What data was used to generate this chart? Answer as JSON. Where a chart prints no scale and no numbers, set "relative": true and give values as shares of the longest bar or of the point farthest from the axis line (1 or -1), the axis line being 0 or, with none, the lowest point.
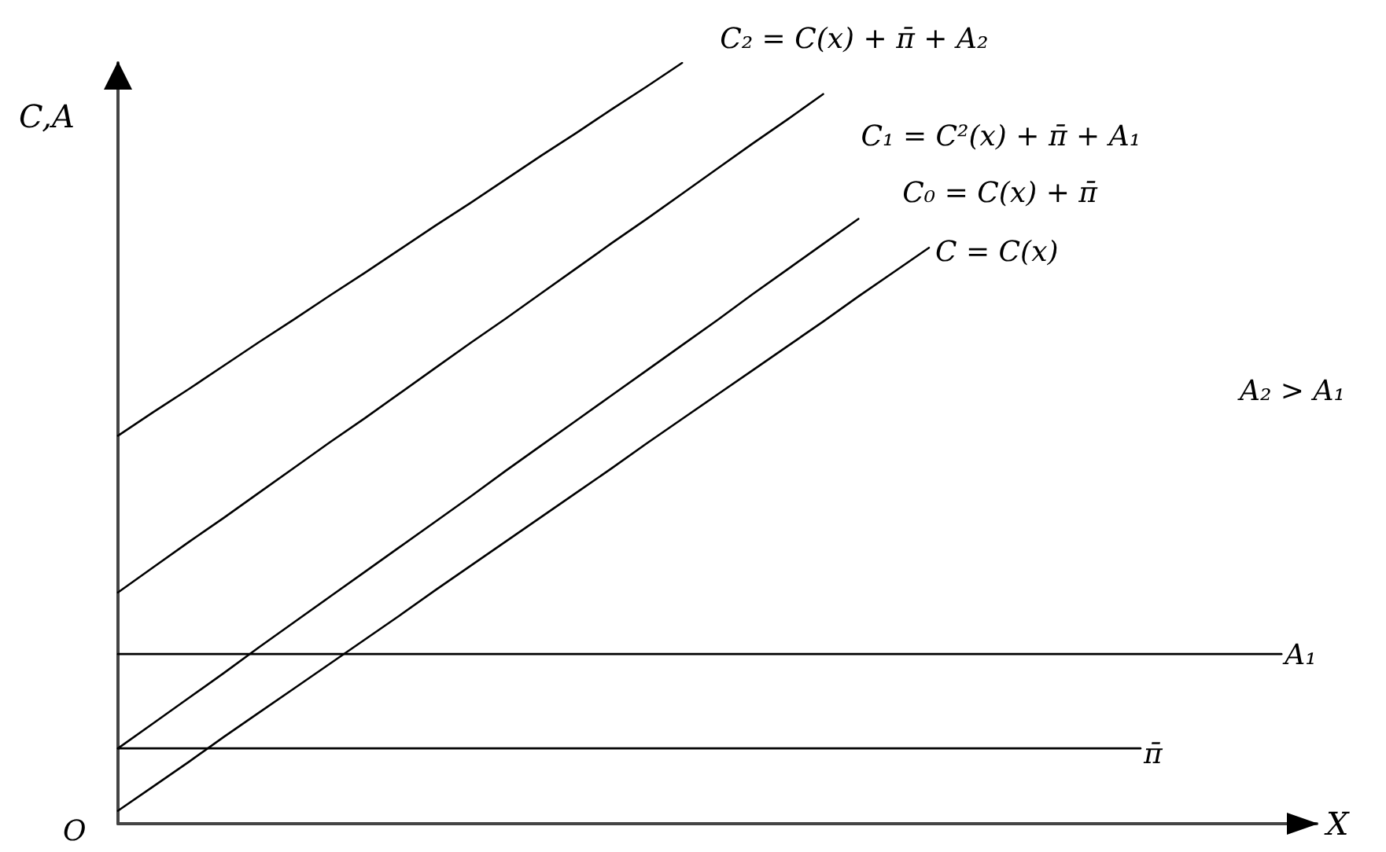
{
  "chart_data": {
    "type": "line",
    "relative": true,
    "xlabel": "X",
    "ylabel": "C,A",
    "annotations": [
      "A₂ > A₁",
      "O"
    ],
    "marker": "none",
    "categories": [
      null,
      null,
      null,
      null,
      null,
      null,
      null,
      null,
      null,
      null,
      null,
      null,
      null,
      null,
      null,
      null,
      null,
      null,
      null,
      null,
      null,
      null,
      null,
      null,
      null,
      null,
      null,
      null,
      null,
      null,
      null,
      null,
      null,
      null,
      null
    ],
    "series": [
      {
        "name": "C₂ = C(x) + π̄ + A₂",
        "color": "#000000",
        "values": [
          0.51,
          0.541,
          0.571,
          0.602,
          0.633,
          0.663,
          0.694,
          0.724,
          0.755,
          0.786,
          0.816,
          0.847,
          0.878,
          0.908,
          0.939,
          0.969,
          1.0,
          null,
          null,
          null,
          null,
          null,
          null,
          null,
          null,
          null,
          null,
          null,
          null,
          null,
          null,
          null,
          null,
          null,
          null
        ]
      },
      {
        "name": "C₁ = C²(x) + π̄ + A₁",
        "color": "#000000",
        "values": [
          0.304,
          0.337,
          0.37,
          0.402,
          0.435,
          0.468,
          0.501,
          0.533,
          0.566,
          0.599,
          0.632,
          0.664,
          0.697,
          0.73,
          0.763,
          0.795,
          0.828,
          0.861,
          0.894,
          0.926,
          0.959,
          null,
          null,
          null,
          null,
          null,
          null,
          null,
          null,
          null,
          null,
          null,
          null,
          null,
          null
        ]
      },
      {
        "name": "C₀ = C(x) + π̄",
        "color": "#000000",
        "values": [
          0.099,
          0.132,
          0.165,
          0.198,
          0.232,
          0.265,
          0.298,
          0.331,
          0.364,
          0.397,
          0.43,
          0.464,
          0.497,
          0.53,
          0.563,
          0.596,
          0.629,
          0.662,
          0.696,
          0.729,
          0.762,
          0.795,
          null,
          null,
          null,
          null,
          null,
          null,
          null,
          null,
          null,
          null,
          null,
          null,
          null
        ]
      },
      {
        "name": "C = C(x)",
        "color": "#000000",
        "values": [
          0.017,
          0.049,
          0.081,
          0.114,
          0.146,
          0.178,
          0.21,
          0.242,
          0.274,
          0.307,
          0.339,
          0.371,
          0.403,
          0.435,
          0.467,
          0.5,
          0.532,
          0.564,
          0.596,
          0.628,
          0.66,
          0.693,
          0.725,
          0.757,
          null,
          null,
          null,
          null,
          null,
          null,
          null,
          null,
          null,
          null,
          null
        ]
      },
      {
        "name": "A₁",
        "color": "#000000",
        "values": [
          0.223,
          0.223,
          0.223,
          0.223,
          0.223,
          0.223,
          0.223,
          0.223,
          0.223,
          0.223,
          0.223,
          0.223,
          0.223,
          0.223,
          0.223,
          0.223,
          0.223,
          0.223,
          0.223,
          0.223,
          0.223,
          0.223,
          0.223,
          0.223,
          0.223,
          0.223,
          0.223,
          0.223,
          0.223,
          0.223,
          0.223,
          0.223,
          0.223,
          0.223,
          null
        ]
      },
      {
        "name": "π̄",
        "color": "#000000",
        "values": [
          0.099,
          0.099,
          0.099,
          0.099,
          0.099,
          0.099,
          0.099,
          0.099,
          0.099,
          0.099,
          0.099,
          0.099,
          0.099,
          0.099,
          0.099,
          0.099,
          0.099,
          0.099,
          0.099,
          0.099,
          0.099,
          0.099,
          0.099,
          0.099,
          0.099,
          0.099,
          0.099,
          0.099,
          0.099,
          0.099,
          null,
          null,
          null,
          null,
          null
        ]
      }
    ]
  }
}
